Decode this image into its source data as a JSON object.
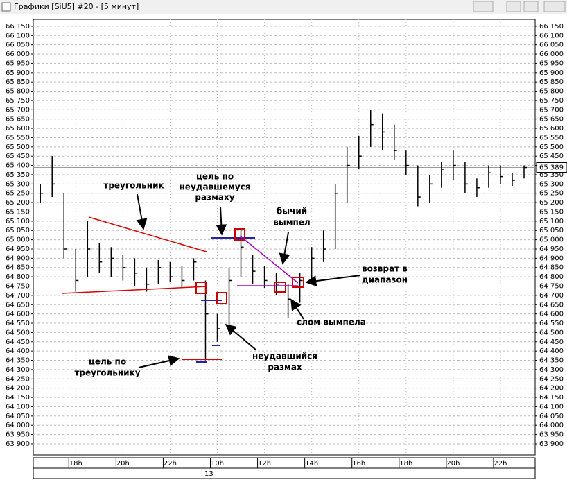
{
  "window_title": "Графики [SiU5] #20 - [5 минут]",
  "chart_data": {
    "type": "hlc",
    "x": [
      0.5,
      1.0,
      1.5,
      2.0,
      2.5,
      3.0,
      3.5,
      4.0,
      4.5,
      5.0,
      5.5,
      6.0,
      6.5,
      7.0,
      7.5,
      8.0,
      8.5,
      9.0,
      9.5,
      10.0,
      10.5,
      11.0,
      11.5,
      12.0,
      12.5,
      13.0,
      13.5,
      14.0,
      14.5,
      15.0,
      15.5,
      16.0,
      16.5,
      17.0,
      17.5,
      18.0,
      18.5,
      19.0,
      19.5,
      20.0,
      20.5,
      21.0
    ],
    "high": [
      65300,
      65450,
      65250,
      64950,
      65100,
      64980,
      64960,
      64920,
      64900,
      64850,
      64890,
      64880,
      64860,
      64900,
      64780,
      64600,
      64850,
      65060,
      64920,
      64860,
      64820,
      64760,
      64820,
      64960,
      65050,
      65300,
      65500,
      65560,
      65700,
      65680,
      65620,
      65480,
      65400,
      65350,
      65420,
      65480,
      65420,
      65330,
      65400,
      65400,
      65360,
      65400
    ],
    "low": [
      65200,
      65230,
      64900,
      64720,
      64800,
      64820,
      64800,
      64780,
      64750,
      64720,
      64760,
      64770,
      64740,
      64780,
      64350,
      64450,
      64500,
      64800,
      64760,
      64740,
      64700,
      64580,
      64660,
      64780,
      64880,
      64950,
      65200,
      65380,
      65500,
      65480,
      65430,
      65350,
      65180,
      65200,
      65280,
      65320,
      65250,
      65230,
      65280,
      65300,
      65290,
      65330
    ],
    "close": [
      65250,
      65300,
      64950,
      64780,
      64950,
      64880,
      64900,
      64850,
      64820,
      64760,
      64850,
      64800,
      64780,
      64880,
      64600,
      64520,
      64780,
      64960,
      64830,
      64780,
      64760,
      64680,
      64780,
      64900,
      64950,
      65250,
      65400,
      65450,
      65620,
      65580,
      65480,
      65400,
      65230,
      65300,
      65380,
      65400,
      65300,
      65280,
      65360,
      65340,
      65320,
      65389
    ],
    "color": "#000000",
    "xlim": [
      0.2,
      21.47
    ],
    "xticks": [
      {
        "value": 2,
        "label": "18h"
      },
      {
        "value": 4,
        "label": "20h"
      },
      {
        "value": 6,
        "label": "22h"
      },
      {
        "value": 8,
        "label": "10h"
      },
      {
        "value": 10,
        "label": "12h"
      },
      {
        "value": 12,
        "label": "14h"
      },
      {
        "value": 14,
        "label": "16h"
      },
      {
        "value": 16,
        "label": "18h"
      },
      {
        "value": 18,
        "label": "20h"
      },
      {
        "value": 20,
        "label": "22h"
      }
    ],
    "date_label": "13",
    "ylim": [
      63840,
      66187
    ],
    "yticks": [
      {
        "value": 63900,
        "label": "63 900"
      },
      {
        "value": 63950,
        "label": "63 950"
      },
      {
        "value": 64000,
        "label": "64 000"
      },
      {
        "value": 64050,
        "label": "64 050"
      },
      {
        "value": 64100,
        "label": "64 100"
      },
      {
        "value": 64150,
        "label": "64 150"
      },
      {
        "value": 64200,
        "label": "64 200"
      },
      {
        "value": 64250,
        "label": "64 250"
      },
      {
        "value": 64300,
        "label": "64 300"
      },
      {
        "value": 64350,
        "label": "64 350"
      },
      {
        "value": 64400,
        "label": "64 400"
      },
      {
        "value": 64450,
        "label": "64 450"
      },
      {
        "value": 64500,
        "label": "64 500"
      },
      {
        "value": 64550,
        "label": "64 550"
      },
      {
        "value": 64600,
        "label": "64 600"
      },
      {
        "value": 64650,
        "label": "64 650"
      },
      {
        "value": 64700,
        "label": "64 700"
      },
      {
        "value": 64750,
        "label": "64 750"
      },
      {
        "value": 64800,
        "label": "64 800"
      },
      {
        "value": 64850,
        "label": "64 850"
      },
      {
        "value": 64900,
        "label": "64 900"
      },
      {
        "value": 64950,
        "label": "64 950"
      },
      {
        "value": 65000,
        "label": "65 000"
      },
      {
        "value": 65050,
        "label": "65 050"
      },
      {
        "value": 65100,
        "label": "65 100"
      },
      {
        "value": 65150,
        "label": "65 150"
      },
      {
        "value": 65200,
        "label": "65 200"
      },
      {
        "value": 65250,
        "label": "65 250"
      },
      {
        "value": 65300,
        "label": "65 300"
      },
      {
        "value": 65350,
        "label": "65 350"
      },
      {
        "value": 65400,
        "label": "65 400"
      },
      {
        "value": 65450,
        "label": "65 450"
      },
      {
        "value": 65500,
        "label": "65 500"
      },
      {
        "value": 65550,
        "label": "65 550"
      },
      {
        "value": 65600,
        "label": "65 600"
      },
      {
        "value": 65650,
        "label": "65 650"
      },
      {
        "value": 65700,
        "label": "65 700"
      },
      {
        "value": 65750,
        "label": "65 750"
      },
      {
        "value": 65800,
        "label": "65 800"
      },
      {
        "value": 65850,
        "label": "65 850"
      },
      {
        "value": 65900,
        "label": "65 900"
      },
      {
        "value": 65950,
        "label": "65 950"
      },
      {
        "value": 66000,
        "label": "66 000"
      },
      {
        "value": 66050,
        "label": "66 050"
      },
      {
        "value": 66100,
        "label": "66 100"
      },
      {
        "value": 66150,
        "label": "66 150"
      }
    ],
    "last_price": {
      "value": 65389,
      "label": "65 389"
    },
    "grid": true,
    "annotations": [
      "треугольник",
      "цель по",
      "неудавшемуся",
      "размаху",
      "бычий",
      "вымпел",
      "возврат в",
      "диапазон",
      "слом вымпела",
      "неудавшийся",
      "размах",
      "цель по",
      "треугольнику"
    ]
  }
}
